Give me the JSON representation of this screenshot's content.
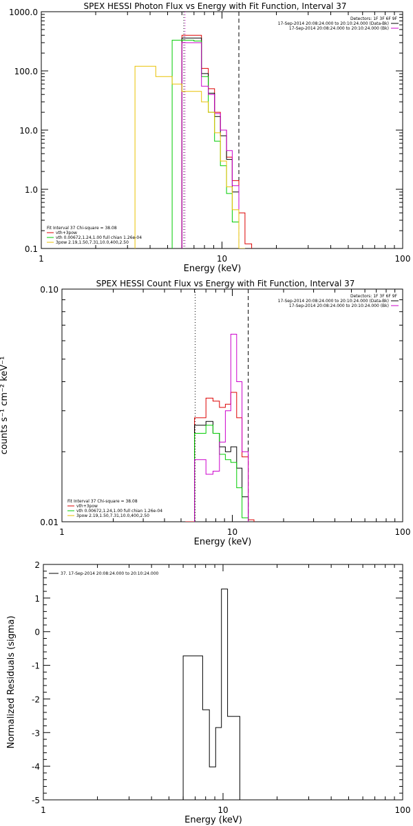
{
  "chart_data": [
    {
      "type": "line",
      "step": true,
      "title": "SPEX HESSI Photon Flux vs Energy with Fit Function, Interval 37",
      "xlabel": "Energy (keV)",
      "ylabel": "",
      "xscale": "log",
      "yscale": "log",
      "xlim": [
        1,
        100
      ],
      "ylim": [
        0.1,
        1000
      ],
      "xticks": [
        {
          "v": 1,
          "label": "1"
        },
        {
          "v": 10,
          "label": "10"
        },
        {
          "v": 100,
          "label": "100"
        }
      ],
      "yticks": [
        {
          "v": 0.1,
          "label": "0.1"
        },
        {
          "v": 1,
          "label": "1.0"
        },
        {
          "v": 10,
          "label": "10.0"
        },
        {
          "v": 100,
          "label": "100.0"
        },
        {
          "v": 1000,
          "label": "1000.0"
        }
      ],
      "vlines": [
        {
          "x": 6.15,
          "style": "dotted",
          "color": "#000000"
        },
        {
          "x": 6.25,
          "style": "dotted",
          "color": "#cc00cc"
        },
        {
          "x": 12.4,
          "style": "dashed",
          "color": "#000000"
        }
      ],
      "info_top_right": [
        "Detectors: 1F 3F 6F 9F",
        "17-Sep-2014 20:08:24.000 to 20:10:24.000 (Data-Bk)",
        "17-Sep-2014 20:08:24.000 to 20:10:24.000 (Bk)"
      ],
      "info_top_right_colors": [
        "#000000",
        "#000000",
        "#cc00cc"
      ],
      "info_bottom_left": [
        "Fit Interval 37    Chi-square = 38.08",
        "vth+3pow",
        "vth 0.00672,1.24,1.00  full chian 1.26e-04",
        "3pow 2.19,1.50,7.31,10.0,400,2.50"
      ],
      "info_bottom_left_colors": [
        "#000000",
        "#dd0000",
        "#00cc00",
        "#e8c000"
      ],
      "series": [
        {
          "name": "vth+3pow",
          "color": "#dd0000",
          "edges": [
            6.0,
            7.0,
            7.7,
            8.4,
            9.1,
            9.8,
            10.6,
            11.4,
            12.4,
            13.4,
            14.6
          ],
          "values": [
            400,
            400,
            110,
            50,
            20,
            10,
            3.5,
            1.4,
            0.4,
            0.12
          ]
        },
        {
          "name": "",
          "color": "#000000",
          "edges": [
            6.0,
            7.0,
            7.7,
            8.4,
            9.1,
            9.8,
            10.6,
            11.4,
            12.4
          ],
          "values": [
            360,
            360,
            90,
            42,
            17,
            8,
            3.2,
            0.9
          ]
        },
        {
          "name": "vth 0.00672,1.24,1.00  full chian 1.26e-04",
          "color": "#00cc00",
          "edges": [
            5.3,
            6.0,
            7.0,
            7.7,
            8.4,
            9.1,
            9.8,
            10.6,
            11.4,
            12.4,
            13.4
          ],
          "values": [
            330,
            330,
            320,
            80,
            20,
            6.5,
            2.5,
            0.85,
            0.28,
            0.1
          ]
        },
        {
          "name": "",
          "color": "#cc00cc",
          "edges": [
            6.0,
            7.0,
            7.7,
            8.4,
            9.1,
            9.8,
            10.6,
            11.4,
            12.4
          ],
          "values": [
            300,
            300,
            55,
            40,
            19,
            10,
            4.5,
            1.15
          ]
        },
        {
          "name": "3pow 2.19,1.50,7.31,10.0,400,2.50",
          "color": "#e8c000",
          "edges": [
            3.3,
            4.3,
            5.3,
            6.0,
            7.0,
            7.7,
            8.4,
            9.1,
            9.8,
            10.6,
            11.4,
            12.4,
            13.4
          ],
          "values": [
            120,
            80,
            60,
            45,
            45,
            30,
            20,
            9,
            3,
            1.1,
            0.45,
            0.1
          ]
        }
      ]
    },
    {
      "type": "line",
      "step": true,
      "title": "SPEX HESSI Count Flux vs Energy with Fit Function, Interval 37",
      "xlabel": "Energy (keV)",
      "ylabel": "counts s⁻¹ cm⁻² keV⁻¹",
      "xscale": "log",
      "yscale": "log",
      "xlim": [
        1,
        100
      ],
      "ylim": [
        0.01,
        0.1
      ],
      "xticks": [
        {
          "v": 1,
          "label": "1"
        },
        {
          "v": 10,
          "label": "10"
        },
        {
          "v": 100,
          "label": "100"
        }
      ],
      "yticks": [
        {
          "v": 0.01,
          "label": "0.01"
        },
        {
          "v": 0.1,
          "label": "0.10"
        }
      ],
      "vlines": [
        {
          "x": 6.05,
          "style": "dotted",
          "color": "#000000"
        },
        {
          "x": 12.4,
          "style": "dashed",
          "color": "#000000"
        }
      ],
      "info_top_right": [
        "Detectors: 1F 3F 6F 9F",
        "17-Sep-2014 20:08:24.000 to 20:10:24.000 (Data-Bk)",
        "17-Sep-2014 20:08:24.000 to 20:10:24.000 (Bk)"
      ],
      "info_top_right_colors": [
        "#000000",
        "#000000",
        "#cc00cc"
      ],
      "info_bottom_left": [
        "Fit Interval 37    Chi-square = 38.08",
        "vth+3pow",
        "vth 0.00672,1.24,1.00  full chian 1.26e-04",
        "3pow 2.19,1.50,7.31,10.0,400,2.50"
      ],
      "info_bottom_left_colors": [
        "#000000",
        "#dd0000",
        "#00cc00",
        "#e8c000"
      ],
      "series": [
        {
          "name": "vth+3pow",
          "color": "#dd0000",
          "edges": [
            5.3,
            6.0,
            7.0,
            7.7,
            8.4,
            9.1,
            9.8,
            10.6,
            11.4,
            12.4,
            13.4
          ],
          "values": [
            0.01,
            0.028,
            0.034,
            0.033,
            0.031,
            0.032,
            0.036,
            0.028,
            0.019,
            0.0102
          ]
        },
        {
          "name": "",
          "color": "#000000",
          "edges": [
            6.0,
            7.0,
            7.7,
            8.4,
            9.1,
            9.8,
            10.6,
            11.4,
            12.4
          ],
          "values": [
            0.026,
            0.027,
            0.024,
            0.021,
            0.02,
            0.021,
            0.017,
            0.0128
          ]
        },
        {
          "name": "vth 0.00672,1.24,1.00  full chian 1.26e-04",
          "color": "#00cc00",
          "edges": [
            6.0,
            7.0,
            7.7,
            8.4,
            9.1,
            9.8,
            10.6,
            11.4,
            12.4
          ],
          "values": [
            0.024,
            0.026,
            0.024,
            0.0195,
            0.0185,
            0.018,
            0.014,
            0.0104
          ]
        },
        {
          "name": "",
          "color": "#cc00cc",
          "edges": [
            6.0,
            7.0,
            7.7,
            8.4,
            9.1,
            9.8,
            10.6,
            11.4,
            12.4
          ],
          "values": [
            0.0185,
            0.016,
            0.0165,
            0.022,
            0.03,
            0.064,
            0.04,
            0.02
          ]
        }
      ]
    },
    {
      "type": "line",
      "step": true,
      "title": "",
      "xlabel": "Energy (keV)",
      "ylabel": "Normalized Residuals (sigma)",
      "xscale": "log",
      "yscale": "linear",
      "xlim": [
        1,
        100
      ],
      "ylim": [
        -5,
        2
      ],
      "xticks": [
        {
          "v": 1,
          "label": "1"
        },
        {
          "v": 10,
          "label": "10"
        },
        {
          "v": 100,
          "label": "100"
        }
      ],
      "yticks": [
        {
          "v": -5,
          "label": "-5"
        },
        {
          "v": -4,
          "label": "-4"
        },
        {
          "v": -3,
          "label": "-3"
        },
        {
          "v": -2,
          "label": "-2"
        },
        {
          "v": -1,
          "label": "-1"
        },
        {
          "v": 0,
          "label": "0"
        },
        {
          "v": 1,
          "label": "1"
        },
        {
          "v": 2,
          "label": "2"
        }
      ],
      "vlines": [],
      "info_top_right": [],
      "info_top_right_colors": [],
      "legend_items": [
        {
          "label": "37. 17-Sep-2014 20:08:24.000 to 20:10:24.000",
          "color": "#000000"
        }
      ],
      "info_bottom_left": [],
      "info_bottom_left_colors": [],
      "series": [
        {
          "name": "37. 17-Sep-2014 20:08:24.000 to 20:10:24.000",
          "color": "#000000",
          "edges": [
            6.0,
            7.0,
            7.7,
            8.4,
            9.1,
            9.8,
            10.6,
            11.4,
            12.4
          ],
          "values": [
            -0.72,
            -0.72,
            -2.32,
            -4.02,
            -2.85,
            1.27,
            -2.52,
            -2.52
          ]
        }
      ]
    }
  ]
}
